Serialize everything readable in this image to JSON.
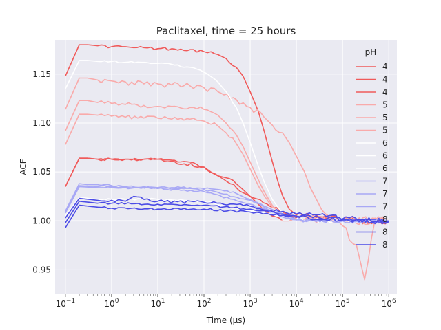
{
  "chart_data": {
    "type": "line",
    "title": "Paclitaxel, time = 25 hours",
    "xlabel": "Time (μs)",
    "ylabel": "ACF",
    "x_scale": "log",
    "xlim": [
      0.06,
      1500000
    ],
    "ylim": [
      0.925,
      1.185
    ],
    "x_ticks": [
      {
        "value": 0.1,
        "base": "10",
        "exp": "−1"
      },
      {
        "value": 1,
        "base": "10",
        "exp": "0"
      },
      {
        "value": 10,
        "base": "10",
        "exp": "1"
      },
      {
        "value": 100,
        "base": "10",
        "exp": "2"
      },
      {
        "value": 1000,
        "base": "10",
        "exp": "3"
      },
      {
        "value": 10000,
        "base": "10",
        "exp": "4"
      },
      {
        "value": 100000,
        "base": "10",
        "exp": "5"
      },
      {
        "value": 1000000,
        "base": "10",
        "exp": "6"
      }
    ],
    "y_ticks": [
      0.95,
      1.0,
      1.05,
      1.1,
      1.15
    ],
    "grid": true,
    "legend_title": "pH",
    "legend_position": "right",
    "colors": {
      "4": "#f05a5a",
      "5": "#f9aaaa",
      "6": "#ffffff",
      "7": "#a8a8f5",
      "8": "#4b4be6"
    },
    "background": "#eaeaf2",
    "series": [
      {
        "name": "4",
        "amp": 0.18,
        "tau": 1200,
        "noise": 0.003,
        "x": [
          0.1,
          0.2,
          0.3,
          0.5,
          1,
          2,
          3,
          5,
          10,
          20,
          50,
          100,
          200,
          300,
          500,
          700,
          1000,
          1500,
          2000,
          3000,
          4000,
          5000,
          7000,
          10000,
          20000,
          50000,
          100000,
          200000,
          500000,
          1000000
        ],
        "y": [
          1.148,
          1.18,
          1.18,
          1.179,
          1.178,
          1.178,
          1.177,
          1.177,
          1.176,
          1.176,
          1.175,
          1.173,
          1.17,
          1.166,
          1.157,
          1.148,
          1.132,
          1.112,
          1.092,
          1.061,
          1.04,
          1.026,
          1.012,
          1.006,
          1.004,
          1.003,
          1.002,
          1.001,
          1.0,
          1.0
        ]
      },
      {
        "name": "4",
        "amp": 0.063,
        "tau": 150,
        "noise": 0.003,
        "x": [
          0.1,
          0.2,
          0.3,
          0.5,
          1,
          2,
          3,
          5,
          10,
          20,
          50,
          100,
          150,
          200,
          300,
          500,
          700,
          1000,
          1500,
          2000,
          3000,
          5000,
          7000,
          10000,
          20000,
          50000,
          100000,
          200000,
          500000,
          1000000
        ],
        "y": [
          1.035,
          1.064,
          1.064,
          1.063,
          1.063,
          1.063,
          1.063,
          1.063,
          1.063,
          1.062,
          1.06,
          1.055,
          1.049,
          1.046,
          1.044,
          1.038,
          1.032,
          1.025,
          1.017,
          1.011,
          1.005,
          1.0,
          1.0,
          1.003,
          1.002,
          1.003,
          1.001,
          1.0,
          1.0,
          1.0
        ]
      },
      {
        "name": "4",
        "amp": 0.0,
        "tau": 1,
        "noise": 0.003,
        "x": [
          0.1,
          0.2,
          0.3,
          0.5,
          1,
          2,
          5,
          10,
          100,
          1000,
          10000,
          100000,
          1000000
        ],
        "y": [
          1.035,
          1.064,
          1.064,
          1.063,
          1.063,
          1.063,
          1.063,
          1.063,
          1.055,
          1.025,
          1.003,
          1.001,
          1.0
        ]
      },
      {
        "name": "5",
        "amp": 0.146,
        "tau": 3000,
        "noise": 0.006,
        "x": [
          0.1,
          0.2,
          0.3,
          0.5,
          1,
          2,
          5,
          10,
          20,
          50,
          100,
          200,
          500,
          1000,
          2000,
          3000,
          5000,
          7000,
          10000,
          15000,
          20000,
          30000,
          50000,
          100000,
          200000,
          300000,
          500000,
          1000000
        ],
        "y": [
          1.114,
          1.146,
          1.146,
          1.144,
          1.143,
          1.142,
          1.14,
          1.14,
          1.139,
          1.138,
          1.136,
          1.132,
          1.124,
          1.116,
          1.106,
          1.098,
          1.09,
          1.08,
          1.066,
          1.05,
          1.034,
          1.018,
          1.005,
          0.995,
          0.975,
          0.94,
          1.0,
          1.0
        ]
      },
      {
        "name": "5",
        "amp": 0.123,
        "tau": 600,
        "noise": 0.004,
        "x": [
          0.1,
          0.2,
          0.3,
          0.5,
          1,
          2,
          5,
          10,
          20,
          50,
          100,
          200,
          300,
          500,
          700,
          1000,
          1500,
          2000,
          3000,
          5000,
          7000,
          10000,
          20000,
          50000,
          100000,
          1000000
        ],
        "y": [
          1.092,
          1.123,
          1.123,
          1.121,
          1.12,
          1.119,
          1.118,
          1.117,
          1.117,
          1.116,
          1.114,
          1.108,
          1.1,
          1.088,
          1.076,
          1.06,
          1.042,
          1.03,
          1.016,
          1.008,
          1.004,
          1.004,
          1.003,
          1.003,
          1.001,
          1.0
        ]
      },
      {
        "name": "5",
        "amp": 0.109,
        "tau": 700,
        "noise": 0.004,
        "x": [
          0.1,
          0.2,
          0.3,
          0.5,
          1,
          2,
          5,
          10,
          20,
          50,
          100,
          200,
          300,
          500,
          700,
          1000,
          1500,
          2000,
          3000,
          5000,
          7000,
          10000,
          20000,
          50000,
          100000,
          1000000
        ],
        "y": [
          1.078,
          1.109,
          1.109,
          1.108,
          1.107,
          1.106,
          1.105,
          1.105,
          1.104,
          1.104,
          1.102,
          1.097,
          1.09,
          1.079,
          1.068,
          1.053,
          1.036,
          1.026,
          1.014,
          1.006,
          1.003,
          1.002,
          1.002,
          1.001,
          1.0,
          1.0
        ]
      },
      {
        "name": "6",
        "amp": 0.164,
        "tau": 900,
        "noise": 0.002,
        "x": [
          0.1,
          0.2,
          0.3,
          0.5,
          1,
          2,
          5,
          10,
          20,
          50,
          100,
          200,
          300,
          500,
          700,
          1000,
          1500,
          2000,
          3000,
          5000,
          7000,
          10000,
          20000,
          100000,
          1000000
        ],
        "y": [
          1.135,
          1.164,
          1.164,
          1.163,
          1.163,
          1.162,
          1.162,
          1.161,
          1.16,
          1.157,
          1.152,
          1.142,
          1.132,
          1.116,
          1.1,
          1.08,
          1.056,
          1.04,
          1.022,
          1.008,
          1.003,
          1.001,
          1.0,
          1.0,
          1.0
        ]
      },
      {
        "name": "6",
        "amp": 0.022,
        "tau": 200,
        "noise": 0.002,
        "x": [
          0.1,
          0.2,
          0.5,
          1,
          10,
          100,
          1000,
          10000,
          100000,
          1000000
        ],
        "y": [
          1.005,
          1.024,
          1.022,
          1.022,
          1.022,
          1.02,
          1.01,
          1.002,
          1.0,
          1.0
        ]
      },
      {
        "name": "6",
        "amp": 0.0,
        "tau": 1,
        "noise": 0.0,
        "x": [
          0.1,
          1000000
        ],
        "y": [
          1.0,
          1.0
        ]
      },
      {
        "name": "7",
        "amp": 0.038,
        "tau": 900,
        "noise": 0.002,
        "x": [
          0.1,
          0.2,
          0.3,
          0.5,
          1,
          2,
          5,
          10,
          20,
          50,
          100,
          200,
          500,
          1000,
          2000,
          3000,
          5000,
          10000,
          20000,
          100000,
          1000000
        ],
        "y": [
          1.01,
          1.038,
          1.037,
          1.037,
          1.036,
          1.035,
          1.035,
          1.034,
          1.034,
          1.034,
          1.033,
          1.032,
          1.028,
          1.022,
          1.014,
          1.009,
          1.004,
          1.001,
          1.0,
          1.0,
          1.0
        ]
      },
      {
        "name": "7",
        "amp": 0.036,
        "tau": 900,
        "noise": 0.002,
        "x": [
          0.1,
          0.2,
          0.5,
          1,
          10,
          100,
          1000,
          10000,
          100000,
          1000000
        ],
        "y": [
          1.009,
          1.036,
          1.035,
          1.035,
          1.034,
          1.032,
          1.021,
          1.001,
          1.0,
          1.0
        ]
      },
      {
        "name": "7",
        "amp": 0.035,
        "tau": 700,
        "noise": 0.002,
        "x": [
          0.1,
          0.2,
          0.5,
          1,
          10,
          100,
          1000,
          10000,
          100000,
          1000000
        ],
        "y": [
          1.008,
          1.035,
          1.034,
          1.034,
          1.033,
          1.03,
          1.017,
          1.001,
          1.0,
          1.0
        ]
      },
      {
        "name": "8",
        "amp": 0.023,
        "tau": 2000,
        "noise": 0.003,
        "x": [
          0.1,
          0.2,
          0.5,
          1,
          2,
          3,
          10,
          100,
          1000,
          10000,
          100000,
          1000000
        ],
        "y": [
          1.003,
          1.023,
          1.021,
          1.021,
          1.02,
          1.025,
          1.02,
          1.019,
          1.015,
          1.007,
          1.002,
          0.999
        ]
      },
      {
        "name": "8",
        "amp": 0.02,
        "tau": 3000,
        "noise": 0.002,
        "x": [
          0.1,
          0.2,
          0.5,
          1,
          10,
          100,
          1000,
          10000,
          100000,
          1000000
        ],
        "y": [
          0.998,
          1.02,
          1.018,
          1.018,
          1.017,
          1.016,
          1.012,
          1.005,
          1.001,
          0.999
        ]
      },
      {
        "name": "8",
        "amp": 0.016,
        "tau": 5000,
        "noise": 0.002,
        "x": [
          0.1,
          0.2,
          0.5,
          1,
          10,
          100,
          1000,
          10000,
          100000,
          1000000
        ],
        "y": [
          0.993,
          1.016,
          1.014,
          1.013,
          1.012,
          1.012,
          1.009,
          1.004,
          1.001,
          0.999
        ]
      }
    ]
  }
}
